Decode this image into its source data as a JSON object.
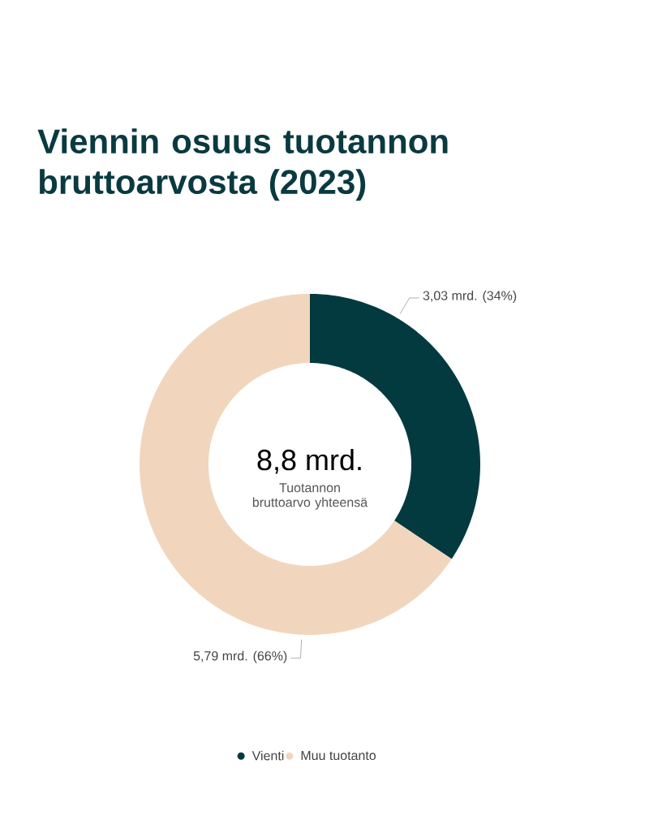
{
  "chart_data": {
    "type": "donut",
    "title": "Viennin osuus tuotannon bruttoarvosta (2023)",
    "categories": [
      "Vienti",
      "Muu tuotanto"
    ],
    "values": [
      3.03,
      5.79
    ],
    "colors": [
      "#033a40",
      "#f1d6bd"
    ],
    "value_labels": [
      "3,03 mrd. (34%)",
      "5,79 mrd. (66%)"
    ],
    "annotations": [
      "8,8 mrd.",
      "Tuotannon bruttoarvo yhteensä"
    ],
    "legend": "bottom"
  }
}
